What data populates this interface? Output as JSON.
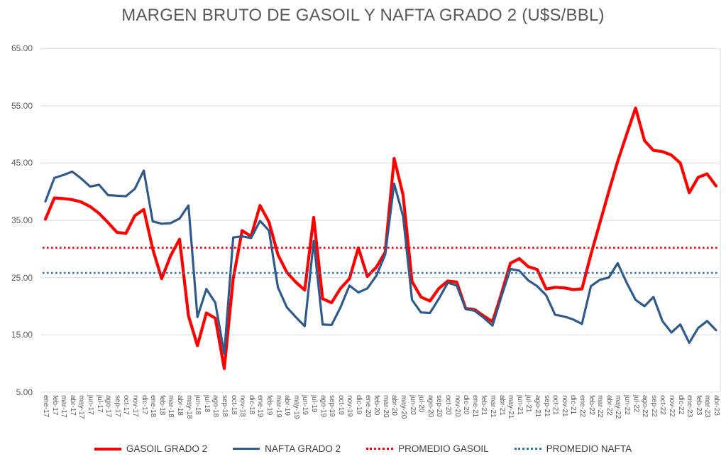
{
  "title": "MARGEN BRUTO DE GASOIL Y NAFTA GRADO 2 (U$S/BBL)",
  "colors": {
    "gasoil": "#FF0000",
    "nafta": "#2E5B8C",
    "promedio_gasoil": "#FF0000",
    "promedio_nafta": "#2E75B6",
    "gridline": "#D9D9D9",
    "axis_text": "#595959",
    "title_text": "#595959"
  },
  "chart_data": {
    "type": "line",
    "title": "MARGEN BRUTO DE GASOIL Y NAFTA GRADO 2 (U$S/BBL)",
    "xlabel": "",
    "ylabel": "",
    "ylim": [
      5,
      65
    ],
    "ytick_labels": [
      "65.00",
      "55.00",
      "45.00",
      "35.00",
      "25.00",
      "15.00",
      "5.00"
    ],
    "ytick_values": [
      65,
      55,
      45,
      35,
      25,
      15,
      5
    ],
    "grid": true,
    "legend_position": "bottom",
    "categories": [
      "ene-17",
      "feb-17",
      "mar-17",
      "abr-17",
      "may-17",
      "jun-17",
      "jul-17",
      "ago-17",
      "sep-17",
      "oct-17",
      "nov-17",
      "dic-17",
      "ene-18",
      "feb-18",
      "mar-18",
      "abr-18",
      "may-18",
      "jun-18",
      "jul-18",
      "ago-18",
      "sep-18",
      "oct-18",
      "nov-18",
      "dic-18",
      "ene-19",
      "feb-19",
      "mar-19",
      "abr-19",
      "may-19",
      "jun-19",
      "jul-19",
      "ago-19",
      "sep-19",
      "oct-19",
      "nov-19",
      "dic-19",
      "ene-20",
      "feb-20",
      "mar-20",
      "abr-20",
      "may-20",
      "jun-20",
      "jul-20",
      "ago-20",
      "sep-20",
      "oct-20",
      "nov-20",
      "dic-20",
      "ene-21",
      "feb-21",
      "mar-21",
      "abr-21",
      "may-21",
      "jun-21",
      "jul-21",
      "ago-21",
      "sep-21",
      "oct-21",
      "nov-21",
      "dic-21",
      "ene-22",
      "feb-22",
      "mar-22",
      "abr-22",
      "may-22",
      "jun-22",
      "jul-22",
      "ago-22",
      "sep-22",
      "oct-22",
      "nov-22",
      "dic-22",
      "ene-23",
      "feb-23",
      "mar-23",
      "abr-23"
    ],
    "series": [
      {
        "name": "GASOIL GRADO 2",
        "kind": "line",
        "color_key": "gasoil",
        "values": [
          35.2,
          38.9,
          38.8,
          38.6,
          38.2,
          37.4,
          36.2,
          34.6,
          32.9,
          32.7,
          35.8,
          36.9,
          30.0,
          24.8,
          28.8,
          31.7,
          18.3,
          13.1,
          18.8,
          17.9,
          9.1,
          24.8,
          33.2,
          32.2,
          37.6,
          34.7,
          29.0,
          25.9,
          24.2,
          22.8,
          35.5,
          21.3,
          20.6,
          23.1,
          24.8,
          30.2,
          25.2,
          26.8,
          29.4,
          45.8,
          39.4,
          24.3,
          21.6,
          20.9,
          23.1,
          24.4,
          24.2,
          19.6,
          19.4,
          18.3,
          17.3,
          22.2,
          27.5,
          28.3,
          26.9,
          26.4,
          23.0,
          23.3,
          23.2,
          22.9,
          23.0,
          29.0,
          34.5,
          40.0,
          45.3,
          50.0,
          54.6,
          48.9,
          47.2,
          47.0,
          46.4,
          45.0,
          39.8,
          42.5,
          43.1,
          41.0
        ]
      },
      {
        "name": "NAFTA GRADO 2",
        "kind": "line",
        "color_key": "nafta",
        "values": [
          38.3,
          42.4,
          42.9,
          43.5,
          42.3,
          40.9,
          41.2,
          39.4,
          39.3,
          39.2,
          40.5,
          43.7,
          34.8,
          34.4,
          34.5,
          35.3,
          37.6,
          18.1,
          23.0,
          20.6,
          11.7,
          32.0,
          32.2,
          31.9,
          34.9,
          33.2,
          23.3,
          19.8,
          18.1,
          16.5,
          31.4,
          16.8,
          16.7,
          19.8,
          23.6,
          22.4,
          23.1,
          25.3,
          29.0,
          41.4,
          35.7,
          21.1,
          18.9,
          18.8,
          21.3,
          24.1,
          23.6,
          19.5,
          19.2,
          18.0,
          16.6,
          21.7,
          26.5,
          26.2,
          24.5,
          23.5,
          21.9,
          18.5,
          18.2,
          17.7,
          16.9,
          23.5,
          24.6,
          25.0,
          27.5,
          24.1,
          21.1,
          20.0,
          21.6,
          17.4,
          15.4,
          16.8,
          13.6,
          16.2,
          17.4,
          15.8
        ]
      },
      {
        "name": "PROMEDIO GASOIL",
        "kind": "average-line",
        "color_key": "promedio_gasoil",
        "value": 30.2
      },
      {
        "name": "PROMEDIO NAFTA",
        "kind": "average-line",
        "color_key": "promedio_nafta",
        "value": 25.8
      }
    ]
  },
  "legend": {
    "items": [
      {
        "label": "GASOIL GRADO 2",
        "swatch": "solid-red",
        "color_key": "gasoil"
      },
      {
        "label": "NAFTA GRADO 2",
        "swatch": "solid-blue",
        "color_key": "nafta"
      },
      {
        "label": "PROMEDIO GASOIL",
        "swatch": "dotted",
        "color_key": "promedio_gasoil"
      },
      {
        "label": "PROMEDIO NAFTA",
        "swatch": "dotted",
        "color_key": "promedio_nafta"
      }
    ]
  }
}
